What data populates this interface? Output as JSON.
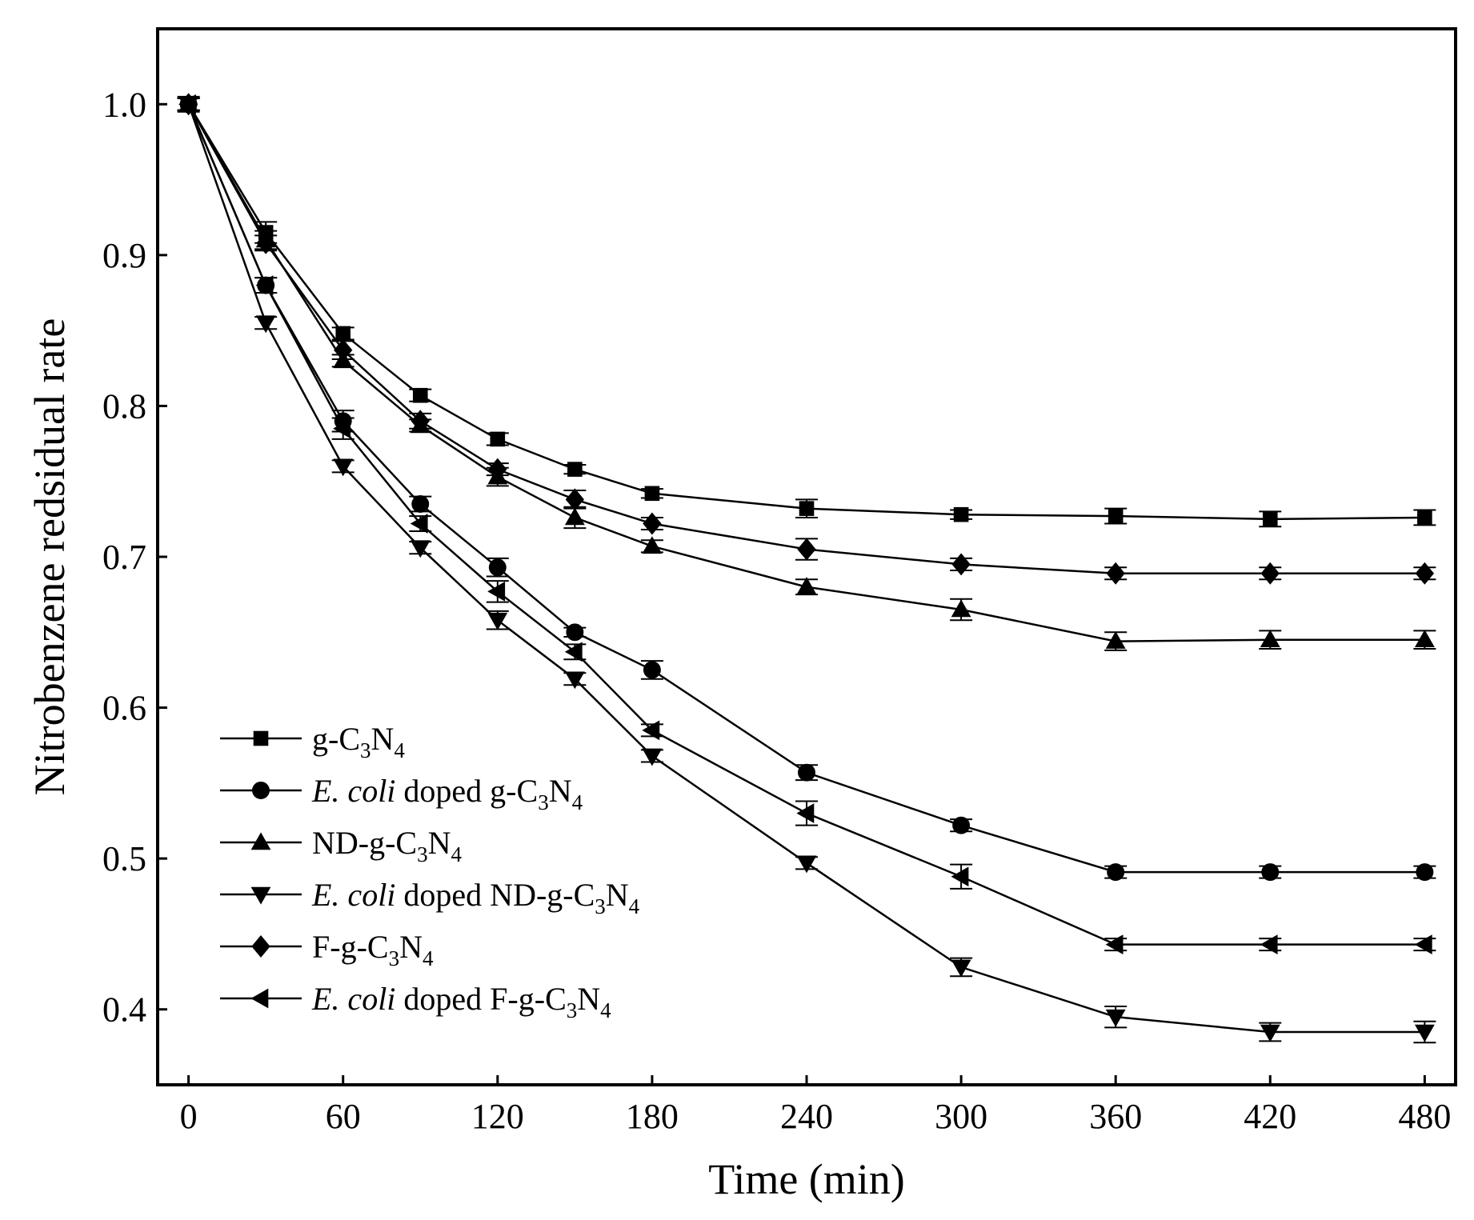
{
  "chart_data": {
    "type": "line",
    "title": "",
    "xlabel": "Time (min)",
    "ylabel": "Nitrobenzene redsidual rate",
    "xlim": [
      -12,
      492
    ],
    "ylim": [
      0.35,
      1.05
    ],
    "xticks": [
      0,
      60,
      120,
      180,
      240,
      300,
      360,
      420,
      480
    ],
    "yticks": [
      0.4,
      0.5,
      0.6,
      0.7,
      0.8,
      0.9,
      1.0
    ],
    "xtick_labels": [
      "0",
      "60",
      "120",
      "180",
      "240",
      "300",
      "360",
      "420",
      "480"
    ],
    "ytick_labels": [
      "0.4",
      "0.5",
      "0.6",
      "0.7",
      "0.8",
      "0.9",
      "1.0"
    ],
    "x": [
      0,
      30,
      60,
      90,
      120,
      150,
      180,
      240,
      300,
      360,
      420,
      480
    ],
    "legend_position": "bottom-left",
    "series": [
      {
        "name": "g-C3N4",
        "legend": {
          "prefix": "",
          "italic": "",
          "base": "g-C",
          "sub1": "3",
          "mid": "N",
          "sub2": "4"
        },
        "marker": "square",
        "values": [
          1.0,
          0.915,
          0.848,
          0.807,
          0.778,
          0.758,
          0.742,
          0.732,
          0.728,
          0.727,
          0.725,
          0.726
        ],
        "errors": [
          0.005,
          0.007,
          0.004,
          0.004,
          0.004,
          0.003,
          0.003,
          0.006,
          0.003,
          0.005,
          0.005,
          0.005
        ]
      },
      {
        "name": "E. coli doped g-C3N4",
        "legend": {
          "prefix": "",
          "italic": "E. coli",
          "base": " doped g-C",
          "sub1": "3",
          "mid": "N",
          "sub2": "4"
        },
        "marker": "circle",
        "values": [
          1.0,
          0.88,
          0.79,
          0.735,
          0.693,
          0.65,
          0.625,
          0.557,
          0.522,
          0.491,
          0.491,
          0.491
        ],
        "errors": [
          0.004,
          0.005,
          0.007,
          0.005,
          0.006,
          0.003,
          0.006,
          0.005,
          0.004,
          0.004,
          0.004,
          0.004
        ]
      },
      {
        "name": "ND-g-C3N4",
        "legend": {
          "prefix": "",
          "italic": "",
          "base": "ND-g-C",
          "sub1": "3",
          "mid": "N",
          "sub2": "4"
        },
        "marker": "triangle-up",
        "values": [
          1.0,
          0.91,
          0.83,
          0.787,
          0.753,
          0.726,
          0.707,
          0.68,
          0.665,
          0.644,
          0.645,
          0.645
        ],
        "errors": [
          0.004,
          0.006,
          0.004,
          0.004,
          0.006,
          0.007,
          0.004,
          0.005,
          0.007,
          0.006,
          0.006,
          0.006
        ]
      },
      {
        "name": "E. coli doped ND-g-C3N4",
        "legend": {
          "prefix": "",
          "italic": "E. coli",
          "base": " doped ND-g-C",
          "sub1": "3",
          "mid": "N",
          "sub2": "4"
        },
        "marker": "triangle-down",
        "values": [
          1.0,
          0.855,
          0.76,
          0.706,
          0.658,
          0.619,
          0.568,
          0.497,
          0.428,
          0.395,
          0.385,
          0.385
        ],
        "errors": [
          0.004,
          0.004,
          0.004,
          0.004,
          0.006,
          0.004,
          0.004,
          0.004,
          0.006,
          0.007,
          0.006,
          0.007
        ]
      },
      {
        "name": "F-g-C3N4",
        "legend": {
          "prefix": "",
          "italic": "",
          "base": "F-g-C",
          "sub1": "3",
          "mid": "N",
          "sub2": "4"
        },
        "marker": "diamond",
        "values": [
          1.0,
          0.908,
          0.837,
          0.79,
          0.758,
          0.738,
          0.722,
          0.705,
          0.695,
          0.689,
          0.689,
          0.689
        ],
        "errors": [
          0.004,
          0.005,
          0.006,
          0.005,
          0.004,
          0.006,
          0.004,
          0.007,
          0.004,
          0.004,
          0.004,
          0.004
        ]
      },
      {
        "name": "E. coli doped F-g-C3N4",
        "legend": {
          "prefix": "",
          "italic": "E. coli",
          "base": " doped F-g-C",
          "sub1": "3",
          "mid": "N",
          "sub2": "4"
        },
        "marker": "triangle-left",
        "values": [
          1.0,
          0.88,
          0.785,
          0.722,
          0.677,
          0.637,
          0.585,
          0.53,
          0.488,
          0.443,
          0.443,
          0.443
        ],
        "errors": [
          0.004,
          0.005,
          0.007,
          0.005,
          0.007,
          0.005,
          0.004,
          0.008,
          0.008,
          0.004,
          0.004,
          0.004
        ]
      }
    ]
  }
}
